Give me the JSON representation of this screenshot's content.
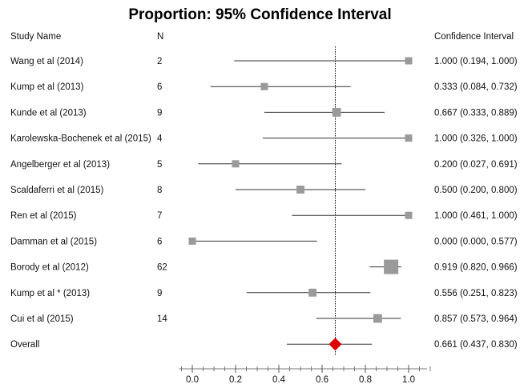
{
  "title": "Proportion: 95% Confidence Interval",
  "headers": {
    "study": "Study Name",
    "n": "N",
    "ci": "Confidence Interval"
  },
  "chart_data": {
    "type": "forest",
    "title": "Proportion: 95% Confidence Interval",
    "xlim": [
      -0.05,
      1.1
    ],
    "x_ticks": [
      0.0,
      0.2,
      0.4,
      0.6,
      0.8,
      1.0
    ],
    "x_tick_labels": [
      "0.0",
      "0.2",
      "0.4",
      "0.6",
      "0.8",
      "1.0"
    ],
    "reference_line": 0.661,
    "studies": [
      {
        "name": "Wang et al  (2014)",
        "n": 2,
        "estimate": 1.0,
        "lower": 0.194,
        "upper": 1.0,
        "ci_text": "1.000 (0.194, 1.000)",
        "weight": 1
      },
      {
        "name": "Kump et al (2013)",
        "n": 6,
        "estimate": 0.333,
        "lower": 0.084,
        "upper": 0.732,
        "ci_text": "0.333 (0.084, 0.732)",
        "weight": 1
      },
      {
        "name": "Kunde et al  (2013)",
        "n": 9,
        "estimate": 0.667,
        "lower": 0.333,
        "upper": 0.889,
        "ci_text": "0.667 (0.333, 0.889)",
        "weight": 1.2
      },
      {
        "name": "Karolewska-Bochenek et al (2015)",
        "n": 4,
        "estimate": 1.0,
        "lower": 0.326,
        "upper": 1.0,
        "ci_text": "1.000 (0.326, 1.000)",
        "weight": 1
      },
      {
        "name": "Angelberger et al  (2013)",
        "n": 5,
        "estimate": 0.2,
        "lower": 0.027,
        "upper": 0.691,
        "ci_text": "0.200 (0.027, 0.691)",
        "weight": 1
      },
      {
        "name": "Scaldaferri et al  (2015)",
        "n": 8,
        "estimate": 0.5,
        "lower": 0.2,
        "upper": 0.8,
        "ci_text": "0.500 (0.200, 0.800)",
        "weight": 1.1
      },
      {
        "name": "Ren et al (2015)",
        "n": 7,
        "estimate": 1.0,
        "lower": 0.461,
        "upper": 1.0,
        "ci_text": "1.000 (0.461, 1.000)",
        "weight": 1
      },
      {
        "name": "Damman et al (2015)",
        "n": 6,
        "estimate": 0.0,
        "lower": 0.0,
        "upper": 0.577,
        "ci_text": "0.000 (0.000, 0.577)",
        "weight": 1
      },
      {
        "name": "Borody et al (2012)",
        "n": 62,
        "estimate": 0.919,
        "lower": 0.82,
        "upper": 0.966,
        "ci_text": "0.919 (0.820, 0.966)",
        "weight": 2.0
      },
      {
        "name": "Kump et al * (2013)",
        "n": 9,
        "estimate": 0.556,
        "lower": 0.251,
        "upper": 0.823,
        "ci_text": "0.556 (0.251, 0.823)",
        "weight": 1.1
      },
      {
        "name": "Cui et al (2015)",
        "n": 14,
        "estimate": 0.857,
        "lower": 0.573,
        "upper": 0.964,
        "ci_text": "0.857 (0.573, 0.964)",
        "weight": 1.2
      }
    ],
    "overall": {
      "name": "Overall",
      "estimate": 0.661,
      "lower": 0.437,
      "upper": 0.83,
      "ci_text": "0.661 (0.437, 0.830)"
    },
    "colors": {
      "study_marker": "#9a9a9a",
      "ci_line": "#333333",
      "overall_marker": "#dd0000",
      "reference_line": "#000000"
    }
  }
}
